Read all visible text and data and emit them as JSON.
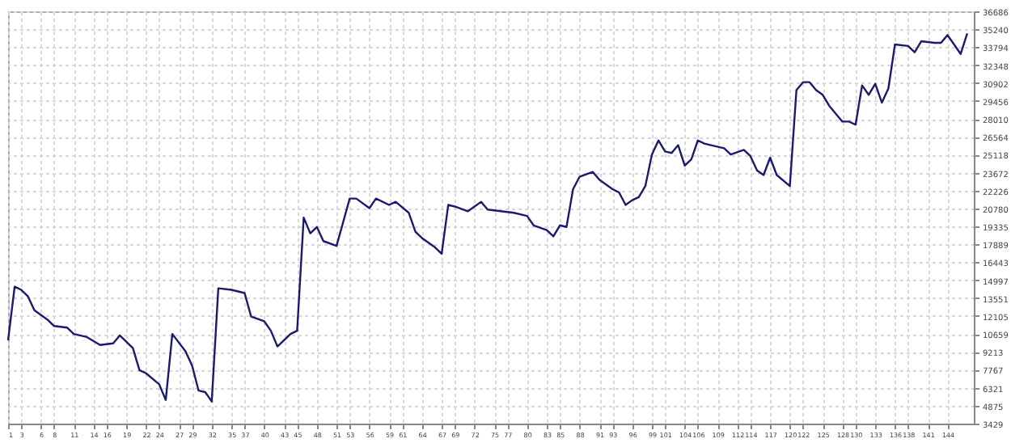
{
  "chart_data": {
    "type": "line",
    "line_style": "solid",
    "marker": "none",
    "grid": true,
    "xlim": [
      1,
      148
    ],
    "xticks": [
      1,
      3,
      6,
      8,
      11,
      14,
      16,
      19,
      22,
      24,
      27,
      29,
      32,
      35,
      37,
      40,
      43,
      45,
      48,
      51,
      53,
      56,
      59,
      61,
      64,
      67,
      69,
      72,
      75,
      77,
      80,
      83,
      85,
      88,
      91,
      93,
      96,
      99,
      101,
      104,
      106,
      109,
      112,
      114,
      117,
      120,
      122,
      125,
      128,
      130,
      133,
      136,
      138,
      141,
      144
    ],
    "ylim": [
      3429,
      36686
    ],
    "yticks": [
      3429,
      4875,
      6321,
      7767,
      9213,
      10659,
      12105,
      13551,
      14997,
      16443,
      17889,
      19335,
      20780,
      22226,
      23672,
      25118,
      26564,
      28010,
      29456,
      30902,
      32348,
      33794,
      35240,
      36686
    ],
    "series": [
      {
        "color": "#1a1a6e",
        "x": [
          1,
          2,
          3,
          4,
          5,
          7,
          8,
          10,
          11,
          13,
          15,
          17,
          18,
          20,
          21,
          22,
          24,
          25,
          26,
          28,
          29,
          30,
          31,
          32,
          33,
          35,
          37,
          38,
          40,
          41,
          42,
          44,
          45,
          46,
          47,
          48,
          49,
          51,
          53,
          54,
          56,
          57,
          59,
          60,
          62,
          63,
          64,
          66,
          67,
          68,
          69,
          71,
          73,
          74,
          76,
          78,
          80,
          81,
          83,
          84,
          85,
          86,
          87,
          88,
          90,
          91,
          93,
          94,
          95,
          96,
          97,
          98,
          99,
          100,
          101,
          102,
          103,
          104,
          105,
          106,
          107,
          108,
          110,
          111,
          113,
          114,
          115,
          116,
          117,
          118,
          120,
          121,
          122,
          123,
          124,
          125,
          126,
          128,
          129,
          130,
          131,
          132,
          133,
          134,
          135,
          136,
          138,
          139,
          140,
          142,
          143,
          144,
          145,
          146,
          147
        ],
        "values": [
          10160,
          14470,
          14220,
          13710,
          12570,
          11810,
          11300,
          11170,
          10660,
          10410,
          9770,
          9900,
          10540,
          9520,
          7740,
          7490,
          6600,
          5330,
          10660,
          9270,
          8120,
          6090,
          5970,
          5210,
          14340,
          14220,
          13960,
          12060,
          11680,
          10920,
          9650,
          10660,
          10920,
          20050,
          18780,
          19290,
          18150,
          17770,
          21580,
          21580,
          20810,
          21580,
          21070,
          21320,
          20430,
          18910,
          18400,
          17640,
          17130,
          21070,
          20940,
          20560,
          21320,
          20690,
          20560,
          20430,
          20180,
          19420,
          19040,
          18530,
          19420,
          19290,
          22340,
          23350,
          23730,
          23100,
          22340,
          22080,
          21070,
          21450,
          21700,
          22590,
          25130,
          26270,
          25380,
          25260,
          25890,
          24240,
          24750,
          26270,
          26020,
          25890,
          25640,
          25130,
          25510,
          25000,
          23860,
          23480,
          24880,
          23480,
          22590,
          30330,
          30970,
          30970,
          30330,
          29950,
          29060,
          27790,
          27790,
          27540,
          30710,
          29950,
          30840,
          29320,
          30460,
          34010,
          33890,
          33380,
          34270,
          34140,
          34140,
          34770,
          34010,
          33250,
          34900
        ]
      }
    ]
  }
}
